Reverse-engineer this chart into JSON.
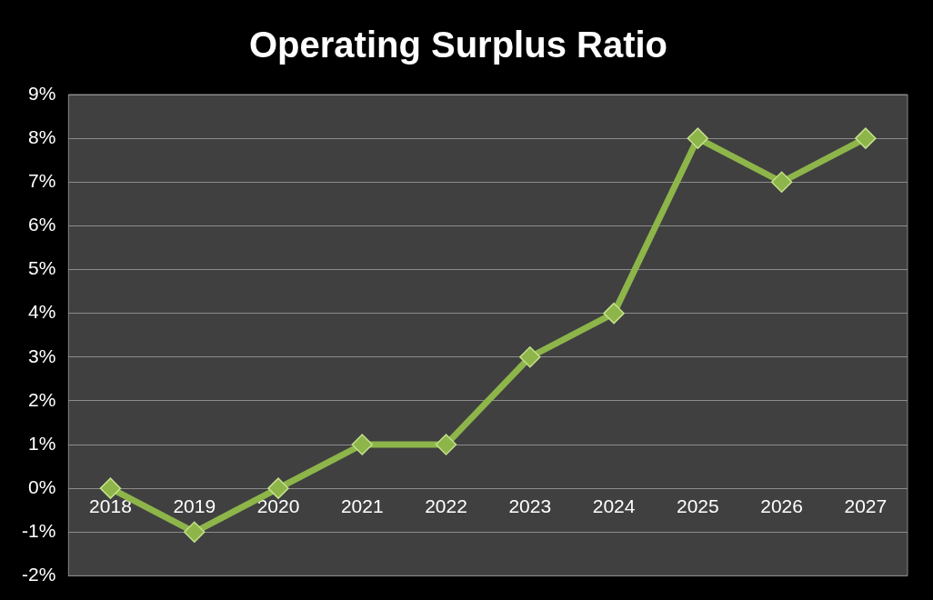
{
  "chart_data": {
    "type": "line",
    "title": "Operating Surplus Ratio",
    "categories": [
      "2018",
      "2019",
      "2020",
      "2021",
      "2022",
      "2023",
      "2024",
      "2025",
      "2026",
      "2027"
    ],
    "series": [
      {
        "color": "#8db54a",
        "values": [
          0,
          -1,
          0,
          1,
          1,
          3,
          4,
          8,
          7,
          8
        ]
      }
    ],
    "ylim": [
      -2,
      9
    ],
    "yticks": [
      {
        "value": -2,
        "label": "-2%"
      },
      {
        "value": -1,
        "label": "-1%"
      },
      {
        "value": 0,
        "label": "0%"
      },
      {
        "value": 1,
        "label": "1%"
      },
      {
        "value": 2,
        "label": "2%"
      },
      {
        "value": 3,
        "label": "3%"
      },
      {
        "value": 4,
        "label": "4%"
      },
      {
        "value": 5,
        "label": "5%"
      },
      {
        "value": 6,
        "label": "6%"
      },
      {
        "value": 7,
        "label": "7%"
      },
      {
        "value": 8,
        "label": "8%"
      },
      {
        "value": 9,
        "label": "9%"
      }
    ],
    "grid": "y",
    "marker": "diamond",
    "line_style": "solid",
    "legend": false
  }
}
